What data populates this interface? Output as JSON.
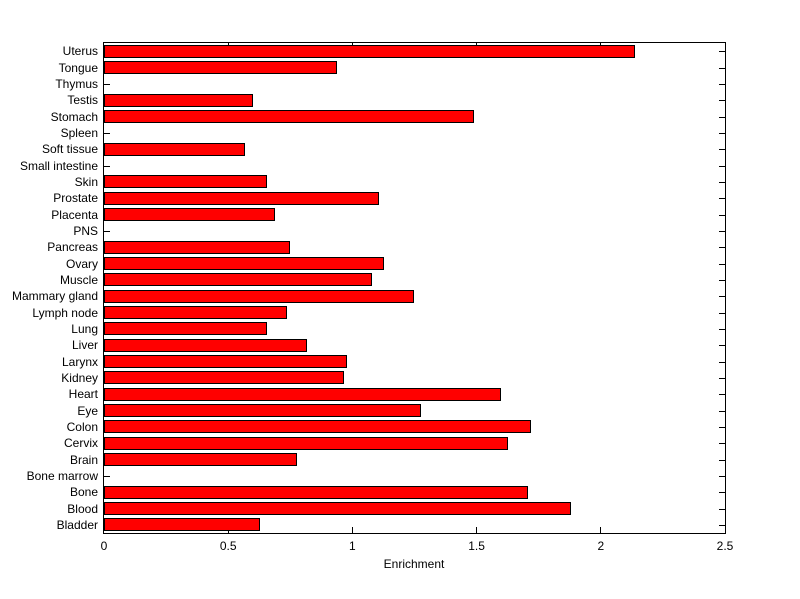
{
  "figure": {
    "background": "#FFFFFF"
  },
  "chart_data": {
    "type": "bar",
    "orientation": "horizontal",
    "title": "",
    "xlabel": "Enrichment",
    "ylabel": "",
    "xlim": [
      0,
      2.5
    ],
    "xticks": [
      0,
      0.5,
      1,
      1.5,
      2,
      2.5
    ],
    "xtick_labels": [
      "0",
      "0.5",
      "1",
      "1.5",
      "2",
      "2.5"
    ],
    "inner_xticks": [
      0.5,
      1,
      1.5,
      2
    ],
    "categories": [
      "Uterus",
      "Tongue",
      "Thymus",
      "Testis",
      "Stomach",
      "Spleen",
      "Soft tissue",
      "Small intestine",
      "Skin",
      "Prostate",
      "Placenta",
      "PNS",
      "Pancreas",
      "Ovary",
      "Muscle",
      "Mammary gland",
      "Lymph node",
      "Lung",
      "Liver",
      "Larynx",
      "Kidney",
      "Heart",
      "Eye",
      "Colon",
      "Cervix",
      "Brain",
      "Bone marrow",
      "Bone",
      "Blood",
      "Bladder"
    ],
    "values": [
      2.13,
      0.93,
      0,
      0.59,
      1.48,
      0,
      0.56,
      0,
      0.65,
      1.1,
      0.68,
      0,
      0.74,
      1.12,
      1.07,
      1.24,
      0.73,
      0.65,
      0.81,
      0.97,
      0.96,
      1.59,
      1.27,
      1.71,
      1.62,
      0.77,
      0,
      1.7,
      1.87,
      0.62
    ],
    "bar_color": "#FF0000",
    "bar_edge_color": "#000000",
    "axis_color": "#000000",
    "grid": false,
    "legend": null
  }
}
